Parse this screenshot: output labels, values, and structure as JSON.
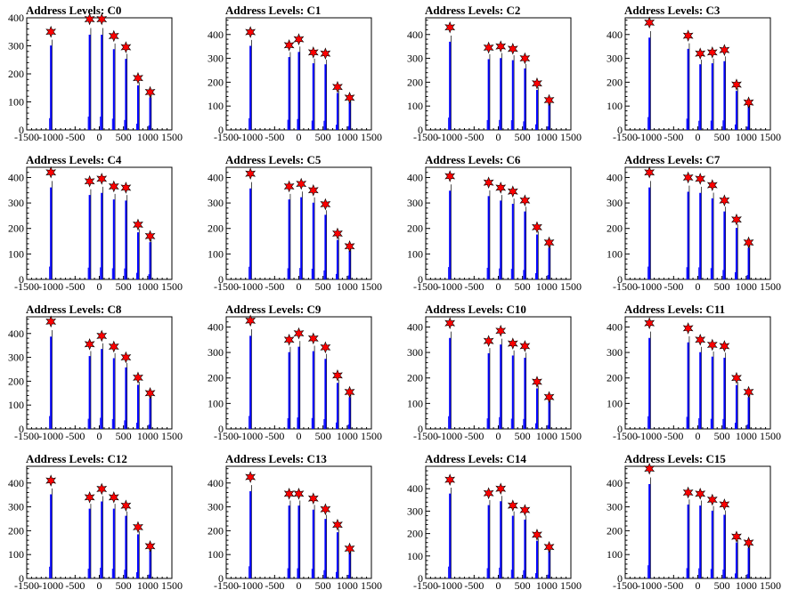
{
  "figure": {
    "title_prefix": "Address Levels: "
  },
  "colors": {
    "histogram": "#0000ff",
    "marker_fill": "#ff0000",
    "marker_stroke": "#000000",
    "axis": "#000000",
    "background": "#ffffff"
  },
  "chart_data": [
    {
      "type": "bar",
      "title": "Address Levels: C0",
      "xlim": [
        -1500,
        1500
      ],
      "ylim": [
        0,
        400
      ],
      "yticks": [
        0,
        100,
        200,
        300,
        400
      ],
      "xticks": [
        -1500,
        -1000,
        -500,
        0,
        500,
        1000,
        1500
      ],
      "tick_labels_x": [
        "-1500",
        "-1000",
        "-500",
        "0",
        "500",
        "1000",
        "1500"
      ],
      "tick_labels_y": [
        "0",
        "100",
        "200",
        "300",
        "400"
      ],
      "peaks_x": [
        -1000,
        -200,
        50,
        300,
        550,
        800,
        1050
      ],
      "peaks_y": [
        350,
        395,
        395,
        335,
        295,
        185,
        135
      ]
    },
    {
      "type": "bar",
      "title": "Address Levels: C1",
      "xlim": [
        -1500,
        1500
      ],
      "ylim": [
        0,
        470
      ],
      "yticks": [
        0,
        100,
        200,
        300,
        400
      ],
      "xticks": [
        -1500,
        -1000,
        -500,
        0,
        500,
        1000,
        1500
      ],
      "tick_labels_x": [
        "-1500",
        "-1000",
        "-500",
        "0",
        "500",
        "1000",
        "1500"
      ],
      "tick_labels_y": [
        "0",
        "100",
        "200",
        "300",
        "400"
      ],
      "peaks_x": [
        -1000,
        -200,
        0,
        300,
        550,
        800,
        1050
      ],
      "peaks_y": [
        410,
        355,
        380,
        325,
        320,
        180,
        135
      ]
    },
    {
      "type": "bar",
      "title": "Address Levels: C2",
      "xlim": [
        -1500,
        1500
      ],
      "ylim": [
        0,
        470
      ],
      "yticks": [
        0,
        100,
        200,
        300,
        400
      ],
      "xticks": [
        -1500,
        -1000,
        -500,
        0,
        500,
        1000,
        1500
      ],
      "tick_labels_x": [
        "-1500",
        "-1000",
        "-500",
        "0",
        "500",
        "1000",
        "1500"
      ],
      "tick_labels_y": [
        "0",
        "100",
        "200",
        "300",
        "400"
      ],
      "peaks_x": [
        -1000,
        -200,
        50,
        300,
        550,
        800,
        1050
      ],
      "peaks_y": [
        430,
        345,
        350,
        340,
        300,
        195,
        125
      ]
    },
    {
      "type": "bar",
      "title": "Address Levels: C3",
      "xlim": [
        -1500,
        1500
      ],
      "ylim": [
        0,
        470
      ],
      "yticks": [
        0,
        100,
        200,
        300,
        400
      ],
      "xticks": [
        -1500,
        -1000,
        -500,
        0,
        500,
        1000,
        1500
      ],
      "tick_labels_x": [
        "-1500",
        "-1000",
        "-500",
        "0",
        "500",
        "1000",
        "1500"
      ],
      "tick_labels_y": [
        "0",
        "100",
        "200",
        "300",
        "400"
      ],
      "peaks_x": [
        -1000,
        -200,
        50,
        300,
        550,
        800,
        1050
      ],
      "peaks_y": [
        450,
        395,
        320,
        325,
        335,
        190,
        115
      ]
    },
    {
      "type": "bar",
      "title": "Address Levels: C4",
      "xlim": [
        -1500,
        1500
      ],
      "ylim": [
        0,
        440
      ],
      "yticks": [
        0,
        100,
        200,
        300,
        400
      ],
      "xticks": [
        -1500,
        -1000,
        -500,
        0,
        500,
        1000,
        1500
      ],
      "tick_labels_x": [
        "-1500",
        "-1000",
        "-500",
        "0",
        "500",
        "1000",
        "1500"
      ],
      "tick_labels_y": [
        "0",
        "100",
        "200",
        "300",
        "400"
      ],
      "peaks_x": [
        -1000,
        -200,
        50,
        300,
        550,
        800,
        1050
      ],
      "peaks_y": [
        420,
        385,
        395,
        365,
        360,
        215,
        170
      ]
    },
    {
      "type": "bar",
      "title": "Address Levels: C5",
      "xlim": [
        -1500,
        1500
      ],
      "ylim": [
        0,
        440
      ],
      "yticks": [
        0,
        100,
        200,
        300,
        400
      ],
      "xticks": [
        -1500,
        -1000,
        -500,
        0,
        500,
        1000,
        1500
      ],
      "tick_labels_x": [
        "-1500",
        "-1000",
        "-500",
        "0",
        "500",
        "1000",
        "1500"
      ],
      "tick_labels_y": [
        "0",
        "100",
        "200",
        "300",
        "400"
      ],
      "peaks_x": [
        -1000,
        -200,
        50,
        300,
        550,
        800,
        1050
      ],
      "peaks_y": [
        415,
        365,
        375,
        350,
        295,
        180,
        130
      ]
    },
    {
      "type": "bar",
      "title": "Address Levels: C6",
      "xlim": [
        -1500,
        1500
      ],
      "ylim": [
        0,
        440
      ],
      "yticks": [
        0,
        100,
        200,
        300,
        400
      ],
      "xticks": [
        -1500,
        -1000,
        -500,
        0,
        500,
        1000,
        1500
      ],
      "tick_labels_x": [
        "-1500",
        "-1000",
        "-500",
        "0",
        "500",
        "1000",
        "1500"
      ],
      "tick_labels_y": [
        "0",
        "100",
        "200",
        "300",
        "400"
      ],
      "peaks_x": [
        -1000,
        -200,
        50,
        300,
        550,
        800,
        1050
      ],
      "peaks_y": [
        405,
        380,
        360,
        345,
        310,
        205,
        145
      ]
    },
    {
      "type": "bar",
      "title": "Address Levels: C7",
      "xlim": [
        -1500,
        1500
      ],
      "ylim": [
        0,
        440
      ],
      "yticks": [
        0,
        100,
        200,
        300,
        400
      ],
      "xticks": [
        -1500,
        -1000,
        -500,
        0,
        500,
        1000,
        1500
      ],
      "tick_labels_x": [
        "-1500",
        "-1000",
        "-500",
        "0",
        "500",
        "1000",
        "1500"
      ],
      "tick_labels_y": [
        "0",
        "100",
        "200",
        "300",
        "400"
      ],
      "peaks_x": [
        -1000,
        -200,
        50,
        300,
        550,
        800,
        1050
      ],
      "peaks_y": [
        420,
        400,
        395,
        370,
        310,
        235,
        145
      ]
    },
    {
      "type": "bar",
      "title": "Address Levels: C8",
      "xlim": [
        -1500,
        1500
      ],
      "ylim": [
        0,
        470
      ],
      "yticks": [
        0,
        100,
        200,
        300,
        400
      ],
      "xticks": [
        -1500,
        -1000,
        -500,
        0,
        500,
        1000,
        1500
      ],
      "tick_labels_x": [
        "-1500",
        "-1000",
        "-500",
        "0",
        "500",
        "1000",
        "1500"
      ],
      "tick_labels_y": [
        "0",
        "100",
        "200",
        "300",
        "400"
      ],
      "peaks_x": [
        -1000,
        -200,
        50,
        300,
        550,
        800,
        1050
      ],
      "peaks_y": [
        450,
        355,
        390,
        345,
        300,
        215,
        150
      ]
    },
    {
      "type": "bar",
      "title": "Address Levels: C9",
      "xlim": [
        -1500,
        1500
      ],
      "ylim": [
        0,
        440
      ],
      "yticks": [
        0,
        100,
        200,
        300,
        400
      ],
      "xticks": [
        -1500,
        -1000,
        -500,
        0,
        500,
        1000,
        1500
      ],
      "tick_labels_x": [
        "-1500",
        "-1000",
        "-500",
        "0",
        "500",
        "1000",
        "1500"
      ],
      "tick_labels_y": [
        "0",
        "100",
        "200",
        "300",
        "400"
      ],
      "peaks_x": [
        -1000,
        -200,
        0,
        300,
        550,
        800,
        1050
      ],
      "peaks_y": [
        425,
        350,
        375,
        355,
        320,
        210,
        145
      ]
    },
    {
      "type": "bar",
      "title": "Address Levels: C10",
      "xlim": [
        -1500,
        1500
      ],
      "ylim": [
        0,
        440
      ],
      "yticks": [
        0,
        100,
        200,
        300,
        400
      ],
      "xticks": [
        -1500,
        -1000,
        -500,
        0,
        500,
        1000,
        1500
      ],
      "tick_labels_x": [
        "-1500",
        "-1000",
        "-500",
        "0",
        "500",
        "1000",
        "1500"
      ],
      "tick_labels_y": [
        "0",
        "100",
        "200",
        "300",
        "400"
      ],
      "peaks_x": [
        -1000,
        -200,
        50,
        300,
        550,
        800,
        1050
      ],
      "peaks_y": [
        415,
        345,
        385,
        335,
        325,
        185,
        125
      ]
    },
    {
      "type": "bar",
      "title": "Address Levels: C11",
      "xlim": [
        -1500,
        1500
      ],
      "ylim": [
        0,
        440
      ],
      "yticks": [
        0,
        100,
        200,
        300,
        400
      ],
      "xticks": [
        -1500,
        -1000,
        -500,
        0,
        500,
        1000,
        1500
      ],
      "tick_labels_x": [
        "-1500",
        "-1000",
        "-500",
        "0",
        "500",
        "1000",
        "1500"
      ],
      "tick_labels_y": [
        "0",
        "100",
        "200",
        "300",
        "400"
      ],
      "peaks_x": [
        -1000,
        -200,
        50,
        300,
        550,
        800,
        1050
      ],
      "peaks_y": [
        415,
        395,
        350,
        330,
        325,
        200,
        145
      ]
    },
    {
      "type": "bar",
      "title": "Address Levels: C12",
      "xlim": [
        -1500,
        1500
      ],
      "ylim": [
        0,
        470
      ],
      "yticks": [
        0,
        100,
        200,
        300,
        400
      ],
      "xticks": [
        -1500,
        -1000,
        -500,
        0,
        500,
        1000,
        1500
      ],
      "tick_labels_x": [
        "-1500",
        "-1000",
        "-500",
        "0",
        "500",
        "1000",
        "1500"
      ],
      "tick_labels_y": [
        "0",
        "100",
        "200",
        "300",
        "400"
      ],
      "peaks_x": [
        -1000,
        -200,
        50,
        300,
        550,
        800,
        1050
      ],
      "peaks_y": [
        410,
        340,
        375,
        340,
        305,
        215,
        135
      ]
    },
    {
      "type": "bar",
      "title": "Address Levels: C13",
      "xlim": [
        -1500,
        1500
      ],
      "ylim": [
        0,
        470
      ],
      "yticks": [
        0,
        100,
        200,
        300,
        400
      ],
      "xticks": [
        -1500,
        -1000,
        -500,
        0,
        500,
        1000,
        1500
      ],
      "tick_labels_x": [
        "-1500",
        "-1000",
        "-500",
        "0",
        "500",
        "1000",
        "1500"
      ],
      "tick_labels_y": [
        "0",
        "100",
        "200",
        "300",
        "400"
      ],
      "peaks_x": [
        -1000,
        -200,
        0,
        300,
        550,
        800,
        1050
      ],
      "peaks_y": [
        425,
        355,
        355,
        335,
        290,
        225,
        125
      ]
    },
    {
      "type": "bar",
      "title": "Address Levels: C14",
      "xlim": [
        -1500,
        1500
      ],
      "ylim": [
        0,
        500
      ],
      "yticks": [
        0,
        100,
        200,
        300,
        400
      ],
      "xticks": [
        -1500,
        -1000,
        -500,
        0,
        500,
        1000,
        1500
      ],
      "tick_labels_x": [
        "-1500",
        "-1000",
        "-500",
        "0",
        "500",
        "1000",
        "1500"
      ],
      "tick_labels_y": [
        "0",
        "100",
        "200",
        "300",
        "400"
      ],
      "peaks_x": [
        -1000,
        -200,
        50,
        300,
        550,
        800,
        1050
      ],
      "peaks_y": [
        440,
        380,
        400,
        325,
        305,
        195,
        140
      ]
    },
    {
      "type": "bar",
      "title": "Address Levels: C15",
      "xlim": [
        -1500,
        1500
      ],
      "ylim": [
        0,
        470
      ],
      "yticks": [
        0,
        100,
        200,
        300,
        400
      ],
      "xticks": [
        -1500,
        -1000,
        -500,
        0,
        500,
        1000,
        1500
      ],
      "tick_labels_x": [
        "-1500",
        "-1000",
        "-500",
        "0",
        "500",
        "1000",
        "1500"
      ],
      "tick_labels_y": [
        "0",
        "100",
        "200",
        "300",
        "400"
      ],
      "peaks_x": [
        -1000,
        -200,
        50,
        300,
        550,
        800,
        1050
      ],
      "peaks_y": [
        460,
        360,
        355,
        330,
        310,
        175,
        150
      ]
    }
  ]
}
